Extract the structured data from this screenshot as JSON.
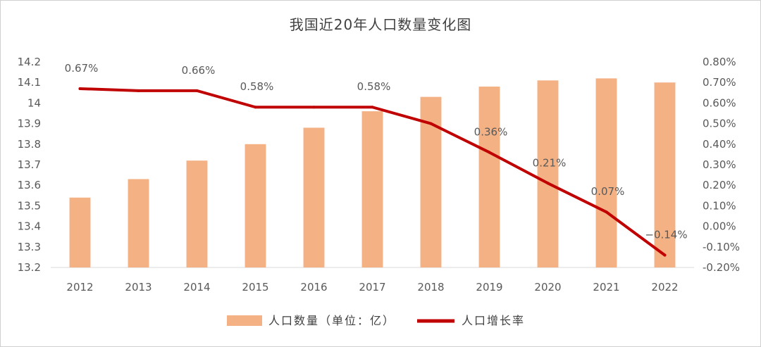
{
  "chart_data": {
    "type": "bar",
    "title": "我国近20年人口数量变化图",
    "categories": [
      "2012",
      "2013",
      "2014",
      "2015",
      "2016",
      "2017",
      "2018",
      "2019",
      "2020",
      "2021",
      "2022"
    ],
    "series": [
      {
        "name": "人口数量（单位：亿）",
        "type": "bar",
        "axis": "left",
        "color": "#f4b183",
        "values": [
          13.54,
          13.63,
          13.72,
          13.8,
          13.88,
          13.96,
          14.03,
          14.08,
          14.11,
          14.12,
          14.1
        ]
      },
      {
        "name": "人口增长率",
        "type": "line",
        "axis": "right",
        "color": "#c00000",
        "values": [
          0.0067,
          0.0066,
          0.0066,
          0.0058,
          0.0058,
          0.0058,
          0.005,
          0.0036,
          0.0021,
          0.0007,
          -0.0014
        ],
        "data_labels": [
          "0.67%",
          "",
          "0.66%",
          "0.58%",
          "",
          "0.58%",
          "",
          "0.36%",
          "0.21%",
          "0.07%",
          "−0.14%"
        ]
      }
    ],
    "y_left": {
      "min": 13.2,
      "max": 14.2,
      "step": 0.1,
      "ticks": [
        "13.2",
        "13.3",
        "13.4",
        "13.5",
        "13.6",
        "13.7",
        "13.8",
        "13.9",
        "14",
        "14.1",
        "14.2"
      ]
    },
    "y_right": {
      "min": -0.002,
      "max": 0.008,
      "step": 0.001,
      "ticks": [
        "-0.20%",
        "-0.10%",
        "0.00%",
        "0.10%",
        "0.20%",
        "0.30%",
        "0.40%",
        "0.50%",
        "0.60%",
        "0.70%",
        "0.80%"
      ]
    },
    "grid": false,
    "legend": "bottom"
  }
}
